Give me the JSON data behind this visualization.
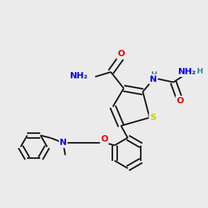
{
  "background_color": "#ebebeb",
  "bond_color": "#1a1a1a",
  "atom_colors": {
    "N": "#0000ee",
    "O": "#ee0000",
    "S": "#cccc00",
    "H": "#3a8888",
    "C": "#1a1a1a"
  },
  "figsize": [
    3.0,
    3.0
  ],
  "dpi": 100
}
